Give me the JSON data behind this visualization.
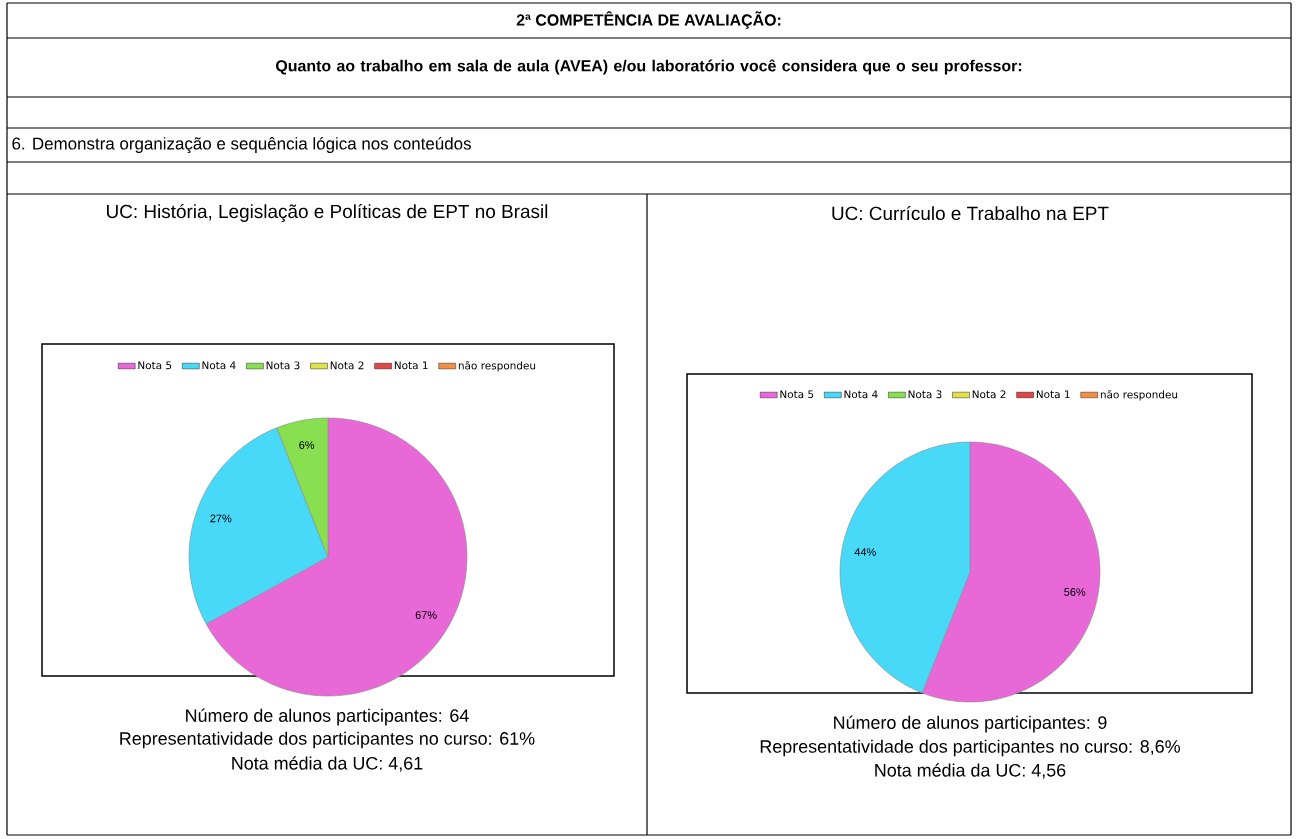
{
  "chart_data": [
    {
      "type": "other",
      "title": "2ª COMPETÊNCIA DE AVALIAÇÃO:",
      "subtitle": "Quanto ao trabalho em sala de aula (AVEA) e/ou laboratório você considera que o seu professor:",
      "annotations": [
        "6. Demonstra organização e sequência lógica nos conteúdos"
      ]
    },
    {
      "type": "pie",
      "title": "UC: História, Legislação e Políticas de EPT no Brasil",
      "categories": [
        "Nota 5",
        "Nota 4",
        "Nota 3",
        "Nota 2",
        "Nota 1",
        "não respondeu"
      ],
      "values": [
        67,
        27,
        6,
        0,
        0,
        0
      ],
      "value_labels": [
        "67%",
        "27%",
        "6%",
        null,
        null,
        null
      ],
      "colors": [
        "#e868d8",
        "#48d8f8",
        "#88e050",
        "#e0e048",
        "#e04848",
        "#f09048"
      ],
      "legend": "top",
      "annotations": [
        "Número de alunos participantes: 64",
        "Representatividade dos participantes no curso: 61%",
        "Nota média da UC: 4,61"
      ]
    },
    {
      "type": "pie",
      "title": "UC: Currículo e Trabalho na EPT",
      "categories": [
        "Nota 5",
        "Nota 4",
        "Nota 3",
        "Nota 2",
        "Nota 1",
        "não respondeu"
      ],
      "values": [
        56,
        44,
        0,
        0,
        0,
        0
      ],
      "value_labels": [
        "56%",
        "44%",
        null,
        null,
        null,
        null
      ],
      "colors": [
        "#e868d8",
        "#48d8f8",
        "#88e050",
        "#e0e048",
        "#e04848",
        "#f09048"
      ],
      "legend": "top",
      "annotations": [
        "Número de alunos participantes: 9",
        "Representatividade dos participantes no curso: 8,6%",
        "Nota média da UC: 4,56"
      ]
    }
  ]
}
